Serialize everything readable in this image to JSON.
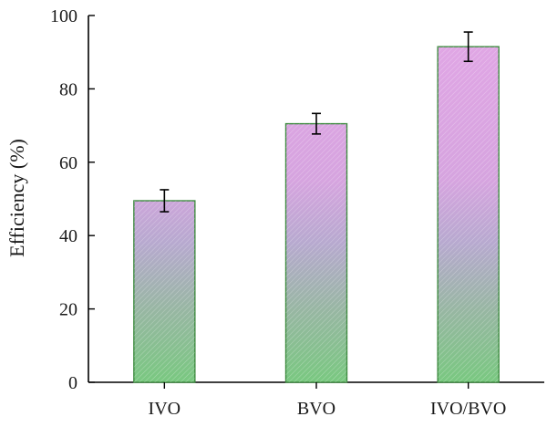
{
  "chart_data": {
    "type": "bar",
    "categories": [
      "IVO",
      "BVO",
      "IVO/BVO"
    ],
    "values": [
      49.5,
      70.5,
      91.5
    ],
    "error": [
      3,
      2.8,
      4
    ],
    "title": "",
    "xlabel": "",
    "ylabel": "Efficiency (%)",
    "ylim": [
      0,
      100
    ],
    "yticks": [
      "0",
      "20",
      "40",
      "60",
      "80",
      "100"
    ],
    "grid": false,
    "legend": "none",
    "fill_gradient": {
      "top": "#e2a6e6",
      "middle": "#b7a9cf",
      "bottom": "#79c880"
    },
    "hatch": "diagonal",
    "border_color": "#3d8a3f"
  }
}
